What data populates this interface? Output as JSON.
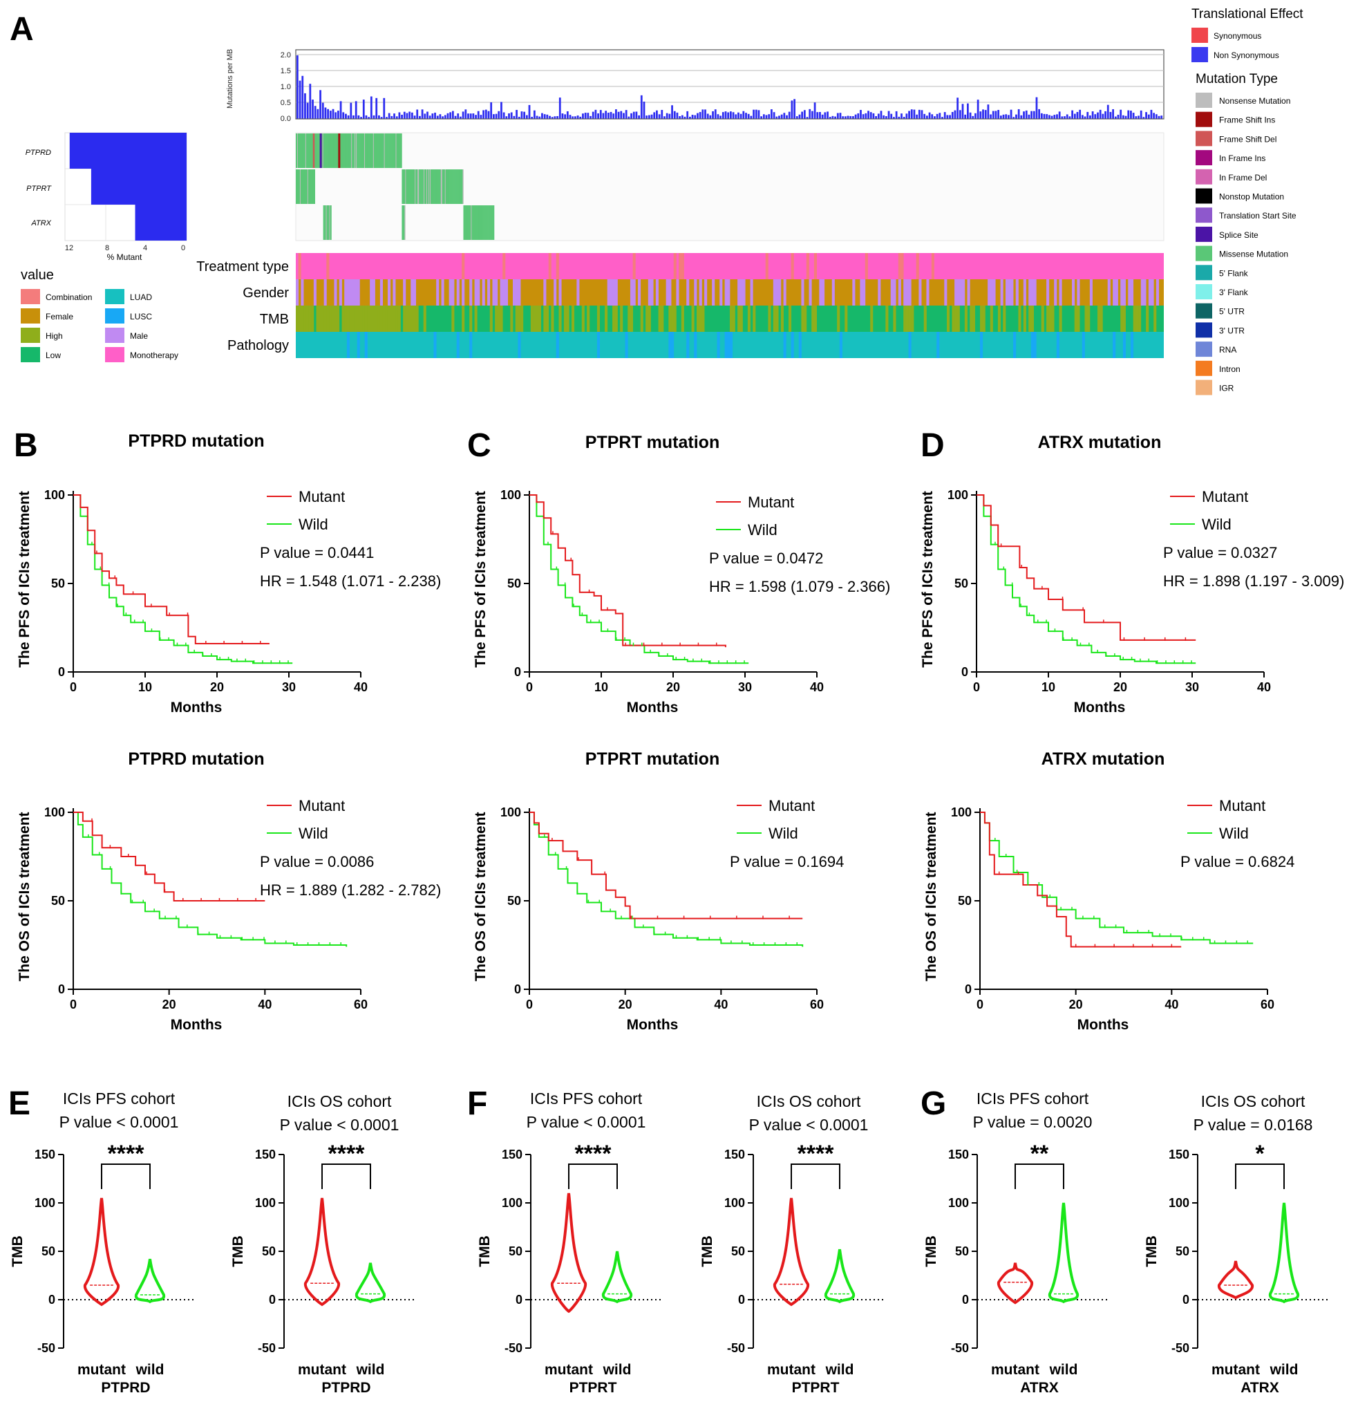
{
  "panel_labels": [
    "A",
    "B",
    "C",
    "D",
    "E",
    "F",
    "G"
  ],
  "oncoplot": {
    "tmb_bar_ylabel": "Mutations per MB",
    "tmb_bar_ticks": [
      "2.0",
      "1.5",
      "1.0",
      "0.5",
      "0.0"
    ],
    "genes": [
      "PTPRD",
      "PTPRT",
      "ATRX"
    ],
    "percent_ticks": [
      "12",
      "8",
      "4",
      "0"
    ],
    "percent_xlabel": "% Mutant",
    "percent_mutant": [
      12.5,
      10.2,
      5.5
    ],
    "tracks": [
      "Treatment type",
      "Gender",
      "TMB",
      "Pathology"
    ],
    "value_legend_title": "value",
    "value_legend": [
      {
        "label": "Combination",
        "color": "#f47c7c"
      },
      {
        "label": "LUAD",
        "color": "#17c0c0"
      },
      {
        "label": "Female",
        "color": "#c8900a"
      },
      {
        "label": "LUSC",
        "color": "#18a8f5"
      },
      {
        "label": "High",
        "color": "#8fae1b"
      },
      {
        "label": "Male",
        "color": "#c08af2"
      },
      {
        "label": "Low",
        "color": "#16b86a"
      },
      {
        "label": "Monotherapy",
        "color": "#ff5fc8"
      }
    ],
    "translational_title": "Translational Effect",
    "translational": [
      {
        "label": "Synonymous",
        "color": "#f0454b"
      },
      {
        "label": "Non Synonymous",
        "color": "#3a3af0"
      }
    ],
    "mutation_type_title": "Mutation Type",
    "mutation_types": [
      {
        "label": "Nonsense Mutation",
        "color": "#bdbdbd"
      },
      {
        "label": "Frame Shift Ins",
        "color": "#a10d0d"
      },
      {
        "label": "Frame Shift Del",
        "color": "#d05656"
      },
      {
        "label": "In Frame Ins",
        "color": "#a3087f"
      },
      {
        "label": "In Frame Del",
        "color": "#d463b0"
      },
      {
        "label": "Nonstop Mutation",
        "color": "#000000"
      },
      {
        "label": "Translation Start Site",
        "color": "#8e58cc"
      },
      {
        "label": "Splice Site",
        "color": "#4b14a6"
      },
      {
        "label": "Missense Mutation",
        "color": "#5ac777"
      },
      {
        "label": "5' Flank",
        "color": "#1aa9a9"
      },
      {
        "label": "3' Flank",
        "color": "#7ff0ea"
      },
      {
        "label": "5' UTR",
        "color": "#0e6565"
      },
      {
        "label": "3' UTR",
        "color": "#1030a8"
      },
      {
        "label": "RNA",
        "color": "#6f86d8"
      },
      {
        "label": "Intron",
        "color": "#f47b20"
      },
      {
        "label": "IGR",
        "color": "#f2b07a"
      }
    ]
  },
  "colors": {
    "mutant": "#e41a1c",
    "wild": "#19e619"
  },
  "km_common": {
    "xlabel": "Months",
    "legend_mutant": "Mutant",
    "legend_wild": "Wild"
  },
  "km_panels": [
    {
      "id": "B",
      "title": "PTPRD mutation",
      "ylabel": "The PFS of ICIs treatment",
      "xlim": [
        0,
        40
      ],
      "xticks": [
        "0",
        "10",
        "20",
        "30",
        "40"
      ],
      "yticks": [
        "0",
        "50",
        "100"
      ],
      "p_text": "P value = 0.0441",
      "hr_text": "HR = 1.548 (1.071 - 2.238)",
      "mutant": [
        [
          0,
          100
        ],
        [
          1,
          93
        ],
        [
          2,
          80
        ],
        [
          3,
          67
        ],
        [
          4,
          57
        ],
        [
          5,
          53
        ],
        [
          6,
          49
        ],
        [
          7,
          44
        ],
        [
          10,
          37
        ],
        [
          13,
          32
        ],
        [
          16,
          20
        ],
        [
          17,
          16
        ],
        [
          27.3,
          16
        ]
      ],
      "wild": [
        [
          0,
          100
        ],
        [
          1,
          88
        ],
        [
          2,
          72
        ],
        [
          3,
          58
        ],
        [
          4,
          49
        ],
        [
          5,
          42
        ],
        [
          6,
          37
        ],
        [
          7,
          32
        ],
        [
          8,
          28
        ],
        [
          10,
          23
        ],
        [
          12,
          18
        ],
        [
          14,
          15
        ],
        [
          16,
          11
        ],
        [
          18,
          9
        ],
        [
          20,
          7
        ],
        [
          22,
          6
        ],
        [
          25,
          5
        ],
        [
          30.5,
          5
        ]
      ]
    },
    {
      "id": "C",
      "title": "PTPRT mutation",
      "ylabel": "The PFS of ICIs treatment",
      "xlim": [
        0,
        40
      ],
      "xticks": [
        "0",
        "10",
        "20",
        "30",
        "40"
      ],
      "yticks": [
        "0",
        "50",
        "100"
      ],
      "p_text": "P value = 0.0472",
      "hr_text": "HR = 1.598 (1.079 - 2.366)",
      "mutant": [
        [
          0,
          100
        ],
        [
          1,
          96
        ],
        [
          2,
          87
        ],
        [
          3,
          78
        ],
        [
          4,
          70
        ],
        [
          5,
          63
        ],
        [
          6,
          55
        ],
        [
          7,
          45
        ],
        [
          9,
          43
        ],
        [
          10,
          35
        ],
        [
          12,
          33
        ],
        [
          13,
          15
        ],
        [
          27.3,
          14
        ]
      ],
      "wild": [
        [
          0,
          100
        ],
        [
          1,
          88
        ],
        [
          2,
          72
        ],
        [
          3,
          58
        ],
        [
          4,
          49
        ],
        [
          5,
          42
        ],
        [
          6,
          37
        ],
        [
          7,
          32
        ],
        [
          8,
          28
        ],
        [
          10,
          23
        ],
        [
          12,
          18
        ],
        [
          14,
          15
        ],
        [
          16,
          11
        ],
        [
          18,
          9
        ],
        [
          20,
          7
        ],
        [
          22,
          6
        ],
        [
          25,
          5
        ],
        [
          30.5,
          5
        ]
      ]
    },
    {
      "id": "D",
      "title": "ATRX mutation",
      "ylabel": "The PFS of ICIs treatment",
      "xlim": [
        0,
        40
      ],
      "xticks": [
        "0",
        "10",
        "20",
        "30",
        "40"
      ],
      "yticks": [
        "0",
        "50",
        "100"
      ],
      "p_text": "P value = 0.0327",
      "hr_text": "HR = 1.898 (1.197 - 3.009)",
      "mutant": [
        [
          0,
          100
        ],
        [
          1,
          94
        ],
        [
          2,
          83
        ],
        [
          3,
          71
        ],
        [
          6,
          59
        ],
        [
          7,
          53
        ],
        [
          8,
          47
        ],
        [
          10,
          41
        ],
        [
          12,
          35
        ],
        [
          15,
          28
        ],
        [
          20,
          18
        ],
        [
          30.5,
          18
        ]
      ],
      "wild": [
        [
          0,
          100
        ],
        [
          1,
          88
        ],
        [
          2,
          72
        ],
        [
          3,
          58
        ],
        [
          4,
          49
        ],
        [
          5,
          42
        ],
        [
          6,
          37
        ],
        [
          7,
          32
        ],
        [
          8,
          28
        ],
        [
          10,
          23
        ],
        [
          12,
          18
        ],
        [
          14,
          15
        ],
        [
          16,
          11
        ],
        [
          18,
          9
        ],
        [
          20,
          7
        ],
        [
          22,
          6
        ],
        [
          25,
          5
        ],
        [
          30.5,
          5
        ]
      ]
    },
    {
      "id": "B2",
      "title": "PTPRD mutation",
      "ylabel": "The OS of ICIs treatment",
      "xlim": [
        0,
        60
      ],
      "xticks": [
        "0",
        "20",
        "40",
        "60"
      ],
      "yticks": [
        "0",
        "50",
        "100"
      ],
      "p_text": "P value = 0.0086",
      "hr_text": "HR = 1.889 (1.282 - 2.782)",
      "mutant": [
        [
          0,
          100
        ],
        [
          2,
          95
        ],
        [
          4,
          87
        ],
        [
          6,
          80
        ],
        [
          10,
          75
        ],
        [
          13,
          70
        ],
        [
          15,
          65
        ],
        [
          17,
          60
        ],
        [
          19,
          55
        ],
        [
          21,
          50
        ],
        [
          40,
          50
        ]
      ],
      "wild": [
        [
          0,
          100
        ],
        [
          1,
          93
        ],
        [
          2,
          86
        ],
        [
          4,
          76
        ],
        [
          6,
          68
        ],
        [
          8,
          60
        ],
        [
          10,
          54
        ],
        [
          12,
          49
        ],
        [
          15,
          44
        ],
        [
          18,
          40
        ],
        [
          22,
          35
        ],
        [
          26,
          31
        ],
        [
          30,
          29
        ],
        [
          35,
          28
        ],
        [
          40,
          26
        ],
        [
          46,
          25
        ],
        [
          57,
          24
        ]
      ]
    },
    {
      "id": "C2",
      "title": "PTPRT mutation",
      "ylabel": "The OS of ICIs treatment",
      "xlim": [
        0,
        60
      ],
      "xticks": [
        "0",
        "20",
        "40",
        "60"
      ],
      "yticks": [
        "0",
        "50",
        "100"
      ],
      "p_text": "P value = 0.1694",
      "hr_text": "",
      "mutant": [
        [
          0,
          100
        ],
        [
          1,
          94
        ],
        [
          2,
          88
        ],
        [
          4,
          84
        ],
        [
          7,
          78
        ],
        [
          10,
          73
        ],
        [
          13,
          65
        ],
        [
          16,
          56
        ],
        [
          18,
          52
        ],
        [
          20,
          47
        ],
        [
          21,
          40
        ],
        [
          57,
          40
        ]
      ],
      "wild": [
        [
          0,
          100
        ],
        [
          1,
          93
        ],
        [
          2,
          86
        ],
        [
          4,
          76
        ],
        [
          6,
          68
        ],
        [
          8,
          60
        ],
        [
          10,
          54
        ],
        [
          12,
          49
        ],
        [
          15,
          44
        ],
        [
          18,
          40
        ],
        [
          22,
          35
        ],
        [
          26,
          31
        ],
        [
          30,
          29
        ],
        [
          35,
          28
        ],
        [
          40,
          26
        ],
        [
          46,
          25
        ],
        [
          57,
          24
        ]
      ]
    },
    {
      "id": "D2",
      "title": "ATRX mutation",
      "ylabel": "The OS of ICIs treatment",
      "xlim": [
        0,
        60
      ],
      "xticks": [
        "0",
        "20",
        "40",
        "60"
      ],
      "yticks": [
        "0",
        "50",
        "100"
      ],
      "p_text": "P value = 0.6824",
      "hr_text": "",
      "mutant": [
        [
          0,
          100
        ],
        [
          1,
          94
        ],
        [
          2,
          76
        ],
        [
          3,
          65
        ],
        [
          9,
          59
        ],
        [
          12,
          53
        ],
        [
          14,
          47
        ],
        [
          16,
          41
        ],
        [
          18,
          30
        ],
        [
          19,
          24
        ],
        [
          42,
          24
        ]
      ],
      "wild": [
        [
          0,
          100
        ],
        [
          1,
          94
        ],
        [
          2,
          84
        ],
        [
          4,
          75
        ],
        [
          7,
          66
        ],
        [
          10,
          59
        ],
        [
          13,
          52
        ],
        [
          16,
          45
        ],
        [
          20,
          40
        ],
        [
          25,
          35
        ],
        [
          30,
          32
        ],
        [
          36,
          30
        ],
        [
          42,
          28
        ],
        [
          48,
          26
        ],
        [
          57,
          26
        ]
      ]
    }
  ],
  "violin_common": {
    "ylabel": "TMB",
    "yticks": [
      "150",
      "100",
      "50",
      "0",
      "-50"
    ],
    "groups": [
      "mutant",
      "wild"
    ]
  },
  "violin_panels": [
    {
      "id": "E1",
      "title": "ICIs PFS cohort",
      "p_text": "P value < 0.0001",
      "sig": "****",
      "gene": "PTPRD",
      "mutant_range": [
        -5,
        105
      ],
      "mutant_median": 15,
      "wild_range": [
        -2,
        42
      ],
      "wild_median": 5
    },
    {
      "id": "E2",
      "title": "ICIs OS cohort",
      "p_text": "P value < 0.0001",
      "sig": "****",
      "gene": "PTPRD",
      "mutant_range": [
        -5,
        105
      ],
      "mutant_median": 17,
      "wild_range": [
        -2,
        38
      ],
      "wild_median": 6
    },
    {
      "id": "F1",
      "title": "ICIs PFS cohort",
      "p_text": "P value < 0.0001",
      "sig": "****",
      "gene": "PTPRT",
      "mutant_range": [
        -12,
        110
      ],
      "mutant_median": 17,
      "wild_range": [
        -2,
        50
      ],
      "wild_median": 6
    },
    {
      "id": "F2",
      "title": "ICIs OS cohort",
      "p_text": "P value < 0.0001",
      "sig": "****",
      "gene": "PTPRT",
      "mutant_range": [
        -5,
        105
      ],
      "mutant_median": 16,
      "wild_range": [
        -2,
        52
      ],
      "wild_median": 6
    },
    {
      "id": "G1",
      "title": "ICIs PFS cohort",
      "p_text": "P value = 0.0020",
      "sig": "**",
      "gene": "ATRX",
      "mutant_range": [
        -3,
        38
      ],
      "mutant_median": 18,
      "wild_range": [
        -2,
        100
      ],
      "wild_median": 6
    },
    {
      "id": "G2",
      "title": "ICIs OS cohort",
      "p_text": "P value = 0.0168",
      "sig": "*",
      "gene": "ATRX",
      "mutant_range": [
        2,
        40
      ],
      "mutant_median": 15,
      "wild_range": [
        -2,
        100
      ],
      "wild_median": 6
    }
  ],
  "chart_data": [
    {
      "type": "bar",
      "title": "",
      "ylabel": "Mutations per MB",
      "ylim": [
        0,
        2.1
      ],
      "values_note_free": true,
      "values": [
        2.0,
        1.2,
        1.35,
        0.8,
        0.5,
        1.1,
        0.6,
        0.4,
        0.3,
        0.9,
        0.5,
        0.35,
        0.3,
        0.25,
        0.3,
        0.2,
        0.25,
        0.55,
        0.2,
        0.15,
        0.1,
        0.5,
        0.1,
        0.55,
        0.1,
        0.05,
        0.6,
        0.1,
        0.05,
        0.7,
        0.1,
        0.65,
        0.1,
        0.05,
        0.65,
        0.05
      ]
    },
    {
      "type": "line",
      "title": "PTPRD mutation",
      "ylabel": "The PFS of ICIs treatment",
      "xlabel": "Months",
      "series_ref": "km_panels.0"
    },
    {
      "type": "line",
      "title": "PTPRT mutation",
      "ylabel": "The PFS of ICIs treatment",
      "xlabel": "Months",
      "series_ref": "km_panels.1"
    },
    {
      "type": "line",
      "title": "ATRX mutation",
      "ylabel": "The PFS of ICIs treatment",
      "xlabel": "Months",
      "series_ref": "km_panels.2"
    },
    {
      "type": "line",
      "title": "PTPRD mutation",
      "ylabel": "The OS of ICIs treatment",
      "xlabel": "Months",
      "series_ref": "km_panels.3"
    },
    {
      "type": "line",
      "title": "PTPRT mutation",
      "ylabel": "The OS of ICIs treatment",
      "xlabel": "Months",
      "series_ref": "km_panels.4"
    },
    {
      "type": "line",
      "title": "ATRX mutation",
      "ylabel": "The OS of ICIs treatment",
      "xlabel": "Months",
      "series_ref": "km_panels.5"
    }
  ]
}
